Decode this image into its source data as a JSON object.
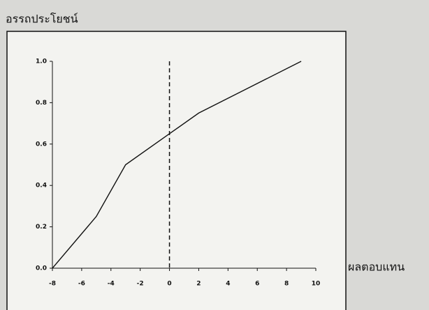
{
  "chart_data": {
    "type": "line",
    "y_label": "อรรถประโยชน์",
    "x_label": "ผลตอบแทน",
    "x": [
      -8,
      -5,
      -3,
      0,
      2,
      9
    ],
    "series": [
      {
        "color": "#111111",
        "values": [
          0,
          0.25,
          0.5,
          0.65,
          0.75,
          1
        ]
      }
    ],
    "xlim": [
      -8,
      10
    ],
    "xticks": [
      -8,
      -6,
      -4,
      -2,
      0,
      2,
      4,
      6,
      8,
      10
    ],
    "ylim": [
      0,
      1
    ],
    "yticks": [
      {
        "value": 0,
        "label": "0.0"
      },
      0.2,
      0.4,
      0.6,
      0.8,
      {
        "value": 1,
        "label": "1.0"
      }
    ],
    "vline": 0
  }
}
